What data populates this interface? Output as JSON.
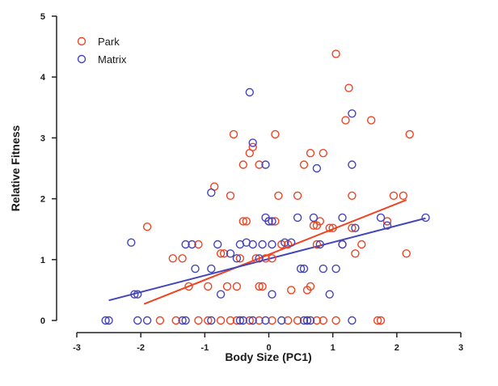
{
  "chart_data": {
    "type": "scatter",
    "title": "",
    "xlabel": "Body Size (PC1)",
    "ylabel": "Relative Fitness",
    "xlim": [
      -3,
      3
    ],
    "ylim": [
      0,
      5
    ],
    "x_ticks": [
      "-3",
      "-2",
      "-1",
      "0",
      "1",
      "2",
      "3"
    ],
    "y_ticks": [
      "0",
      "1",
      "2",
      "3",
      "4",
      "5"
    ],
    "grid": false,
    "legend_position": "top-left",
    "series": [
      {
        "name": "Park",
        "color": "#ee4422",
        "points": [
          [
            -1.9,
            1.54
          ],
          [
            -1.5,
            1.02
          ],
          [
            -1.35,
            1.02
          ],
          [
            -1.25,
            0.56
          ],
          [
            -1.1,
            1.25
          ],
          [
            -0.95,
            0.56
          ],
          [
            -0.85,
            2.2
          ],
          [
            -0.75,
            1.1
          ],
          [
            -0.7,
            1.1
          ],
          [
            -0.65,
            0.56
          ],
          [
            -0.6,
            2.05
          ],
          [
            -0.55,
            3.06
          ],
          [
            -0.5,
            0.56
          ],
          [
            -0.45,
            1.02
          ],
          [
            -0.4,
            1.63
          ],
          [
            -0.35,
            1.63
          ],
          [
            -0.4,
            2.56
          ],
          [
            -0.3,
            2.75
          ],
          [
            -0.25,
            2.85
          ],
          [
            -0.2,
            1.02
          ],
          [
            -0.15,
            2.56
          ],
          [
            -0.15,
            0.56
          ],
          [
            -0.1,
            0.56
          ],
          [
            -0.05,
            1.02
          ],
          [
            0.0,
            1.63
          ],
          [
            0.05,
            1.02
          ],
          [
            0.1,
            1.63
          ],
          [
            0.1,
            3.06
          ],
          [
            0.15,
            2.05
          ],
          [
            0.2,
            1.25
          ],
          [
            0.3,
            1.25
          ],
          [
            0.35,
            0.5
          ],
          [
            0.45,
            2.05
          ],
          [
            0.55,
            2.56
          ],
          [
            0.6,
            0.5
          ],
          [
            0.65,
            2.75
          ],
          [
            0.65,
            0.56
          ],
          [
            0.7,
            1.56
          ],
          [
            0.75,
            1.56
          ],
          [
            0.75,
            1.25
          ],
          [
            0.8,
            1.63
          ],
          [
            0.85,
            2.75
          ],
          [
            0.95,
            1.52
          ],
          [
            1.0,
            1.52
          ],
          [
            1.05,
            4.38
          ],
          [
            1.15,
            1.25
          ],
          [
            1.2,
            3.29
          ],
          [
            1.25,
            3.82
          ],
          [
            1.3,
            1.52
          ],
          [
            1.3,
            2.05
          ],
          [
            1.35,
            1.1
          ],
          [
            1.45,
            1.25
          ],
          [
            1.6,
            3.29
          ],
          [
            1.85,
            1.63
          ],
          [
            1.95,
            2.05
          ],
          [
            2.1,
            2.05
          ],
          [
            2.15,
            1.1
          ],
          [
            2.2,
            3.06
          ],
          [
            -1.7,
            0
          ],
          [
            -1.45,
            0
          ],
          [
            -1.1,
            0
          ],
          [
            -0.95,
            0
          ],
          [
            -0.75,
            0
          ],
          [
            -0.6,
            0
          ],
          [
            -0.5,
            0
          ],
          [
            -0.3,
            0
          ],
          [
            -0.15,
            0
          ],
          [
            0.05,
            0
          ],
          [
            0.3,
            0
          ],
          [
            0.45,
            0
          ],
          [
            0.6,
            0
          ],
          [
            0.75,
            0
          ],
          [
            0.85,
            0
          ],
          [
            1.05,
            0
          ],
          [
            1.7,
            0
          ],
          [
            1.75,
            0
          ]
        ],
        "fit": [
          [
            -1.95,
            0.27
          ],
          [
            2.15,
            1.98
          ]
        ]
      },
      {
        "name": "Matrix",
        "color": "#4444bb",
        "points": [
          [
            -2.15,
            1.28
          ],
          [
            -2.1,
            0.43
          ],
          [
            -2.05,
            0.43
          ],
          [
            -1.3,
            1.25
          ],
          [
            -1.2,
            1.25
          ],
          [
            -1.15,
            0.85
          ],
          [
            -0.9,
            2.1
          ],
          [
            -0.9,
            0.85
          ],
          [
            -0.8,
            1.25
          ],
          [
            -0.75,
            0.43
          ],
          [
            -0.6,
            1.1
          ],
          [
            -0.5,
            1.02
          ],
          [
            -0.45,
            1.25
          ],
          [
            -0.35,
            1.28
          ],
          [
            -0.3,
            3.75
          ],
          [
            -0.25,
            2.92
          ],
          [
            -0.25,
            1.25
          ],
          [
            -0.15,
            1.02
          ],
          [
            -0.1,
            1.25
          ],
          [
            -0.05,
            2.56
          ],
          [
            -0.05,
            1.69
          ],
          [
            0.0,
            1.63
          ],
          [
            0.05,
            1.63
          ],
          [
            0.05,
            1.25
          ],
          [
            0.05,
            0.43
          ],
          [
            0.25,
            1.28
          ],
          [
            0.35,
            1.28
          ],
          [
            0.45,
            1.69
          ],
          [
            0.5,
            0.85
          ],
          [
            0.55,
            0.85
          ],
          [
            0.7,
            1.69
          ],
          [
            0.75,
            2.5
          ],
          [
            0.8,
            1.25
          ],
          [
            0.85,
            0.85
          ],
          [
            0.95,
            0.43
          ],
          [
            1.05,
            0.85
          ],
          [
            1.15,
            1.69
          ],
          [
            1.15,
            1.25
          ],
          [
            1.3,
            3.4
          ],
          [
            1.3,
            2.56
          ],
          [
            1.35,
            1.52
          ],
          [
            1.75,
            1.69
          ],
          [
            1.85,
            1.56
          ],
          [
            2.45,
            1.69
          ],
          [
            -2.55,
            0
          ],
          [
            -2.5,
            0
          ],
          [
            -2.05,
            0
          ],
          [
            -1.9,
            0
          ],
          [
            -1.35,
            0
          ],
          [
            -1.3,
            0
          ],
          [
            -0.9,
            0
          ],
          [
            -0.45,
            0
          ],
          [
            -0.4,
            0
          ],
          [
            -0.25,
            0
          ],
          [
            -0.05,
            0
          ],
          [
            0.2,
            0
          ],
          [
            0.55,
            0
          ],
          [
            0.6,
            0
          ],
          [
            0.65,
            0
          ],
          [
            1.3,
            0
          ]
        ],
        "fit": [
          [
            -2.5,
            0.33
          ],
          [
            2.45,
            1.68
          ]
        ]
      }
    ]
  }
}
